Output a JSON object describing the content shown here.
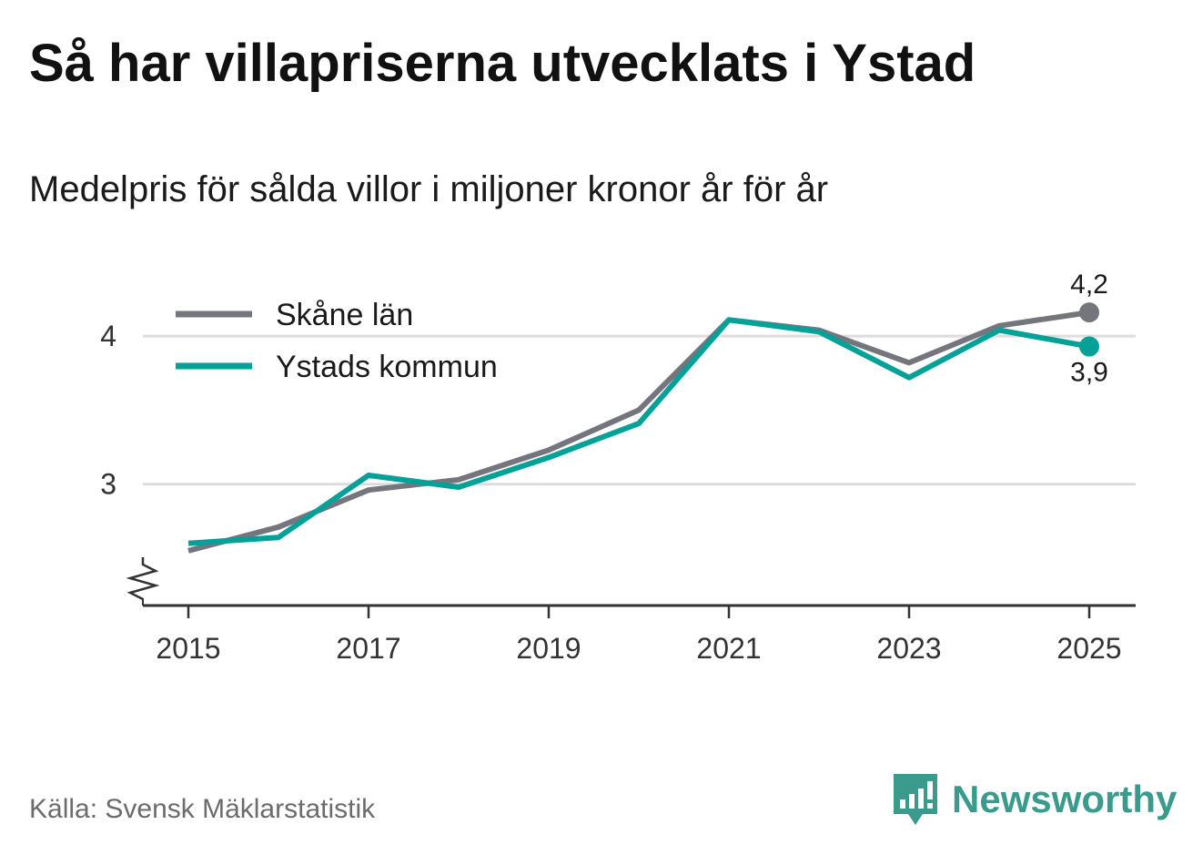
{
  "header": {
    "title": "Så har villapriserna utvecklats i Ystad",
    "subtitle": "Medelpris för sålda villor i miljoner kronor år för år"
  },
  "footer": {
    "source": "Källa: Svensk Mäklarstatistik",
    "brand": "Newsworthy"
  },
  "colors": {
    "skane": "#75757d",
    "ystad": "#03a198",
    "grid": "#dddddd",
    "axis": "#333333",
    "brand": "#3a9b8c"
  },
  "chart_data": {
    "type": "line",
    "title": "Så har villapriserna utvecklats i Ystad",
    "subtitle": "Medelpris för sålda villor i miljoner kronor år för år",
    "xlabel": "",
    "ylabel": "",
    "x": [
      2015,
      2016,
      2017,
      2018,
      2019,
      2020,
      2021,
      2022,
      2023,
      2024,
      2025
    ],
    "xticks": [
      2015,
      2017,
      2019,
      2021,
      2023,
      2025
    ],
    "xtick_labels": [
      "2015",
      "2017",
      "2019",
      "2021",
      "2023",
      "2025"
    ],
    "yticks": [
      3,
      4
    ],
    "ytick_labels": [
      "3",
      "4"
    ],
    "ylim": [
      2.18,
      4.45
    ],
    "y_axis_break": true,
    "grid": true,
    "legend": "top-left",
    "series": [
      {
        "name": "Skåne län",
        "color": "#75757d",
        "values": [
          2.55,
          2.71,
          2.96,
          3.03,
          3.23,
          3.5,
          4.11,
          4.04,
          3.82,
          4.07,
          4.16
        ],
        "end_label": "4,2"
      },
      {
        "name": "Ystads kommun",
        "color": "#03a198",
        "values": [
          2.6,
          2.64,
          3.06,
          2.98,
          3.18,
          3.41,
          4.11,
          4.03,
          3.72,
          4.04,
          3.93
        ],
        "end_label": "3,9"
      }
    ]
  }
}
